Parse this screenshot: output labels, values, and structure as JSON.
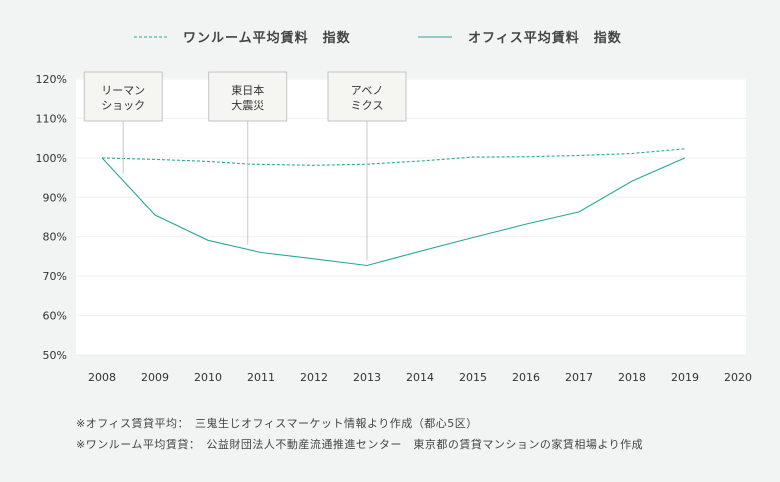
{
  "chart_data": {
    "type": "line",
    "title": "",
    "xlabel": "",
    "ylabel": "",
    "xlim": [
      2008,
      2020
    ],
    "ylim": [
      50,
      120
    ],
    "x_ticks": [
      "2008",
      "2009",
      "2010",
      "2011",
      "2012",
      "2013",
      "2014",
      "2015",
      "2016",
      "2017",
      "2018",
      "2019",
      "2020"
    ],
    "y_ticks": [
      "50%",
      "60%",
      "70%",
      "80%",
      "90%",
      "100%",
      "110%",
      "120%"
    ],
    "grid": true,
    "legend_position": "top",
    "series": [
      {
        "name": "ワンルーム平均賃料　指数",
        "style": "dashed",
        "color": "#2aa89a",
        "points": [
          [
            2008.0,
            100.0
          ],
          [
            2009.0,
            99.6
          ],
          [
            2010.0,
            99.1
          ],
          [
            2010.8,
            98.4
          ],
          [
            2012.0,
            98.1
          ],
          [
            2013.0,
            98.4
          ],
          [
            2014.0,
            99.2
          ],
          [
            2015.0,
            100.2
          ],
          [
            2016.0,
            100.3
          ],
          [
            2017.0,
            100.6
          ],
          [
            2018.0,
            101.1
          ],
          [
            2019.0,
            102.3
          ]
        ]
      },
      {
        "name": "オフィス平均賃料　指数",
        "style": "solid",
        "color": "#2aa89a",
        "points": [
          [
            2008.0,
            100.0
          ],
          [
            2009.0,
            85.5
          ],
          [
            2010.0,
            79.1
          ],
          [
            2011.0,
            76.0
          ],
          [
            2012.0,
            74.4
          ],
          [
            2013.0,
            72.7
          ],
          [
            2014.0,
            76.3
          ],
          [
            2015.0,
            79.8
          ],
          [
            2016.0,
            83.2
          ],
          [
            2017.0,
            86.3
          ],
          [
            2018.0,
            94.1
          ],
          [
            2019.0,
            100.0
          ]
        ]
      }
    ],
    "annotations": [
      {
        "lines": [
          "リーマン",
          "ショック"
        ],
        "x": 2008.4,
        "y_end": 96
      },
      {
        "lines": [
          "東日本",
          "大震災"
        ],
        "x": 2010.75,
        "y_end": 78
      },
      {
        "lines": [
          "アベノ",
          "ミクス"
        ],
        "x": 2013.0,
        "y_end": 74
      }
    ]
  },
  "colors": {
    "line": "#2aa89a",
    "plot_bg": "#ffffff",
    "page_bg": "#f2f4f4",
    "annotation_bg": "#f5f5f1",
    "annotation_border": "#b8b8b8"
  },
  "notes": [
    "※オフィス賃貸平均：　三鬼生じオフィスマーケット情報より作成（都心5区）",
    "※ワンルーム平均賃貸：　公益財団法人不動産流通推進センター　東京都の賃貸マンションの家賃相場より作成"
  ]
}
